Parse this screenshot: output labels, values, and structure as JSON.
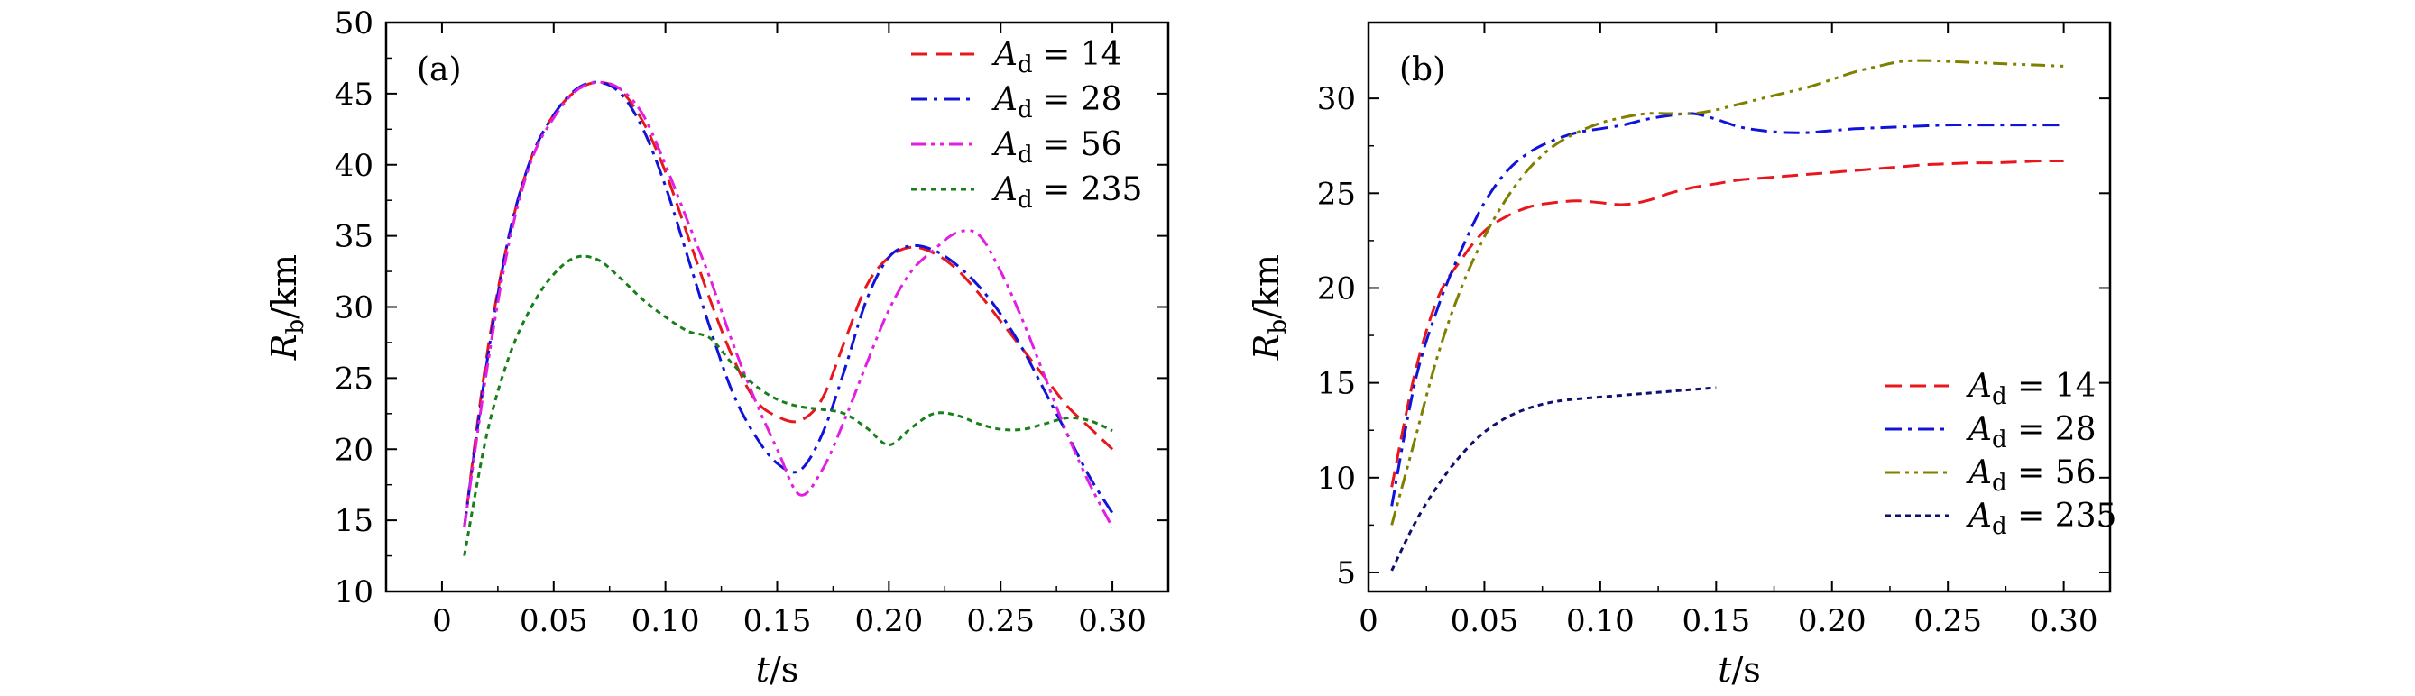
{
  "chart_data": [
    {
      "type": "line",
      "panel_label": "(a)",
      "xlabel": "t/s",
      "ylabel": "Rb/km",
      "xlim": [
        -0.025,
        0.325
      ],
      "ylim": [
        10,
        50
      ],
      "xticks": [
        0,
        0.05,
        0.1,
        0.15,
        0.2,
        0.25,
        0.3
      ],
      "xtick_labels": [
        "0",
        "0.05",
        "0.10",
        "0.15",
        "0.20",
        "0.25",
        "0.30"
      ],
      "yticks": [
        10,
        15,
        20,
        25,
        30,
        35,
        40,
        45,
        50
      ],
      "ytick_labels": [
        "10",
        "15",
        "20",
        "25",
        "30",
        "35",
        "40",
        "45",
        "50"
      ],
      "legend_position": "top-right",
      "series": [
        {
          "name": "Ad = 14",
          "legend_value": "14",
          "color": "#e8171d",
          "dash": "dashed",
          "x": [
            0.01,
            0.02,
            0.03,
            0.04,
            0.05,
            0.06,
            0.07,
            0.08,
            0.09,
            0.1,
            0.11,
            0.12,
            0.13,
            0.14,
            0.15,
            0.16,
            0.17,
            0.18,
            0.19,
            0.2,
            0.21,
            0.22,
            0.23,
            0.24,
            0.25,
            0.26,
            0.27,
            0.28,
            0.29,
            0.3
          ],
          "y": [
            14.5,
            26.5,
            35,
            40.5,
            43.5,
            45.2,
            45.8,
            45.2,
            43,
            39.5,
            35,
            30.5,
            26.5,
            23.5,
            22.3,
            22,
            23.5,
            27.5,
            31.5,
            33.5,
            34.2,
            33.8,
            32.7,
            31,
            29,
            27,
            25,
            23,
            21.5,
            20
          ]
        },
        {
          "name": "Ad = 28",
          "legend_value": "28",
          "color": "#1014d8",
          "dash": "dashdot",
          "x": [
            0.01,
            0.02,
            0.03,
            0.04,
            0.05,
            0.06,
            0.07,
            0.08,
            0.09,
            0.1,
            0.11,
            0.12,
            0.13,
            0.14,
            0.15,
            0.16,
            0.17,
            0.18,
            0.19,
            0.2,
            0.21,
            0.22,
            0.23,
            0.24,
            0.25,
            0.26,
            0.27,
            0.28,
            0.29,
            0.3
          ],
          "y": [
            14.5,
            26,
            35,
            40.5,
            43.5,
            45.3,
            45.8,
            45,
            42.5,
            38.5,
            33.5,
            28.5,
            24,
            21,
            19,
            18.5,
            21,
            25.5,
            30.5,
            33.5,
            34.3,
            34,
            33,
            31.5,
            29.5,
            27,
            24,
            21,
            18,
            15.5
          ]
        },
        {
          "name": "Ad = 56",
          "legend_value": "56",
          "color": "#e21ee3",
          "dash": "dashdotdot",
          "x": [
            0.01,
            0.02,
            0.03,
            0.04,
            0.05,
            0.06,
            0.07,
            0.08,
            0.09,
            0.1,
            0.11,
            0.12,
            0.13,
            0.14,
            0.15,
            0.16,
            0.17,
            0.18,
            0.19,
            0.2,
            0.21,
            0.22,
            0.23,
            0.24,
            0.25,
            0.26,
            0.27,
            0.28,
            0.29,
            0.3
          ],
          "y": [
            14.5,
            25.5,
            34.5,
            40.3,
            43.3,
            45.2,
            45.8,
            45.3,
            43.5,
            40,
            36,
            32,
            27.5,
            23.5,
            20,
            16.8,
            18.5,
            22,
            26,
            29.8,
            32.5,
            34,
            35.2,
            35.1,
            32.5,
            29,
            25,
            21,
            17.5,
            14.5
          ]
        },
        {
          "name": "Ad = 235",
          "legend_value": "235",
          "color": "#187f1a",
          "dash": "dotted",
          "x": [
            0.01,
            0.02,
            0.03,
            0.04,
            0.05,
            0.06,
            0.07,
            0.08,
            0.09,
            0.1,
            0.11,
            0.12,
            0.13,
            0.14,
            0.15,
            0.16,
            0.17,
            0.18,
            0.19,
            0.2,
            0.21,
            0.22,
            0.23,
            0.24,
            0.25,
            0.26,
            0.27,
            0.28,
            0.29,
            0.3
          ],
          "y": [
            12.5,
            21,
            26.5,
            30,
            32.3,
            33.5,
            33.3,
            32,
            30.5,
            29.3,
            28.3,
            27.8,
            26,
            24.5,
            23.5,
            23,
            22.8,
            22.5,
            21.5,
            20.3,
            21.5,
            22.5,
            22.4,
            21.8,
            21.4,
            21.4,
            21.8,
            22.2,
            22,
            21.3
          ]
        }
      ]
    },
    {
      "type": "line",
      "panel_label": "(b)",
      "xlabel": "t/s",
      "ylabel": "Rb/km",
      "xlim": [
        0,
        0.32
      ],
      "ylim": [
        4,
        34
      ],
      "xticks": [
        0,
        0.05,
        0.1,
        0.15,
        0.2,
        0.25,
        0.3
      ],
      "xtick_labels": [
        "0",
        "0.05",
        "0.10",
        "0.15",
        "0.20",
        "0.25",
        "0.30"
      ],
      "yticks": [
        5,
        10,
        15,
        20,
        25,
        30
      ],
      "ytick_labels": [
        "5",
        "10",
        "15",
        "20",
        "25",
        "30"
      ],
      "legend_position": "bottom-right",
      "series": [
        {
          "name": "Ad = 14",
          "legend_value": "14",
          "color": "#e8171d",
          "dash": "dashed",
          "x": [
            0.01,
            0.02,
            0.03,
            0.04,
            0.05,
            0.06,
            0.07,
            0.08,
            0.09,
            0.1,
            0.11,
            0.12,
            0.13,
            0.14,
            0.15,
            0.16,
            0.17,
            0.18,
            0.19,
            0.2,
            0.21,
            0.22,
            0.23,
            0.24,
            0.25,
            0.26,
            0.27,
            0.28,
            0.29,
            0.3
          ],
          "y": [
            9.5,
            15.5,
            19.5,
            21.5,
            23,
            23.8,
            24.3,
            24.5,
            24.6,
            24.5,
            24.4,
            24.6,
            25,
            25.3,
            25.5,
            25.7,
            25.8,
            25.9,
            26,
            26.1,
            26.2,
            26.3,
            26.4,
            26.5,
            26.55,
            26.6,
            26.6,
            26.65,
            26.7,
            26.7
          ]
        },
        {
          "name": "Ad = 28",
          "legend_value": "28",
          "color": "#1014d8",
          "dash": "dashdot",
          "x": [
            0.01,
            0.02,
            0.03,
            0.04,
            0.05,
            0.06,
            0.07,
            0.08,
            0.09,
            0.1,
            0.11,
            0.12,
            0.13,
            0.14,
            0.15,
            0.16,
            0.17,
            0.18,
            0.19,
            0.2,
            0.21,
            0.22,
            0.23,
            0.24,
            0.25,
            0.26,
            0.27,
            0.28,
            0.29,
            0.3
          ],
          "y": [
            8.5,
            15,
            19,
            22,
            24.5,
            26.2,
            27.2,
            27.8,
            28.2,
            28.4,
            28.6,
            28.9,
            29.1,
            29.2,
            28.9,
            28.5,
            28.3,
            28.2,
            28.2,
            28.3,
            28.4,
            28.45,
            28.5,
            28.55,
            28.6,
            28.6,
            28.6,
            28.6,
            28.6,
            28.6
          ]
        },
        {
          "name": "Ad = 56",
          "legend_value": "56",
          "color": "#7f7f00",
          "dash": "dashdotdot",
          "x": [
            0.01,
            0.02,
            0.03,
            0.04,
            0.05,
            0.06,
            0.07,
            0.08,
            0.09,
            0.1,
            0.11,
            0.12,
            0.13,
            0.14,
            0.15,
            0.16,
            0.17,
            0.18,
            0.19,
            0.2,
            0.21,
            0.22,
            0.23,
            0.24,
            0.25,
            0.26,
            0.27,
            0.28,
            0.29,
            0.3
          ],
          "y": [
            7.5,
            12,
            16.5,
            20,
            22.7,
            24.8,
            26.4,
            27.5,
            28.2,
            28.7,
            29,
            29.2,
            29.2,
            29.2,
            29.4,
            29.7,
            30,
            30.3,
            30.6,
            31,
            31.4,
            31.7,
            31.95,
            32,
            31.95,
            31.9,
            31.85,
            31.8,
            31.75,
            31.7
          ]
        },
        {
          "name": "Ad = 235",
          "legend_value": "235",
          "color": "#0f0f6e",
          "dash": "dotted",
          "x": [
            0.01,
            0.02,
            0.03,
            0.04,
            0.05,
            0.06,
            0.07,
            0.08,
            0.09,
            0.1,
            0.11,
            0.12,
            0.13,
            0.14,
            0.15
          ],
          "y": [
            5.1,
            7.6,
            9.6,
            11.2,
            12.4,
            13.2,
            13.7,
            14,
            14.15,
            14.25,
            14.35,
            14.45,
            14.55,
            14.65,
            14.75
          ]
        }
      ]
    }
  ]
}
